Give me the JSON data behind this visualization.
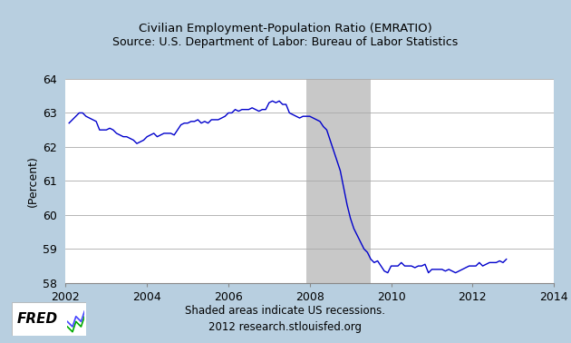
{
  "title_line1": "Civilian Employment-Population Ratio (EMRATIO)",
  "title_line2": "Source: U.S. Department of Labor: Bureau of Labor Statistics",
  "ylabel": "(Percent)",
  "xlabel_footer1": "Shaded areas indicate US recessions.",
  "xlabel_footer2": "2012 research.stlouisfed.org",
  "ylim": [
    58,
    64
  ],
  "xlim_start": 2002.0,
  "xlim_end": 2014.0,
  "yticks": [
    58,
    59,
    60,
    61,
    62,
    63,
    64
  ],
  "xticks": [
    2002,
    2004,
    2006,
    2008,
    2010,
    2012,
    2014
  ],
  "recession_start": 2007.917,
  "recession_end": 2009.5,
  "background_color": "#b8cfe0",
  "plot_bg_color": "#ffffff",
  "line_color": "#0000cc",
  "recession_color": "#c8c8c8",
  "fred_text_color": "#000000",
  "series": [
    [
      2002.083,
      62.7
    ],
    [
      2002.167,
      62.8
    ],
    [
      2002.25,
      62.9
    ],
    [
      2002.333,
      63.0
    ],
    [
      2002.417,
      63.0
    ],
    [
      2002.5,
      62.9
    ],
    [
      2002.583,
      62.85
    ],
    [
      2002.667,
      62.8
    ],
    [
      2002.75,
      62.75
    ],
    [
      2002.833,
      62.5
    ],
    [
      2002.917,
      62.5
    ],
    [
      2003.0,
      62.5
    ],
    [
      2003.083,
      62.55
    ],
    [
      2003.167,
      62.5
    ],
    [
      2003.25,
      62.4
    ],
    [
      2003.333,
      62.35
    ],
    [
      2003.417,
      62.3
    ],
    [
      2003.5,
      62.3
    ],
    [
      2003.583,
      62.25
    ],
    [
      2003.667,
      62.2
    ],
    [
      2003.75,
      62.1
    ],
    [
      2003.833,
      62.15
    ],
    [
      2003.917,
      62.2
    ],
    [
      2004.0,
      62.3
    ],
    [
      2004.083,
      62.35
    ],
    [
      2004.167,
      62.4
    ],
    [
      2004.25,
      62.3
    ],
    [
      2004.333,
      62.35
    ],
    [
      2004.417,
      62.4
    ],
    [
      2004.5,
      62.4
    ],
    [
      2004.583,
      62.4
    ],
    [
      2004.667,
      62.35
    ],
    [
      2004.75,
      62.5
    ],
    [
      2004.833,
      62.65
    ],
    [
      2004.917,
      62.7
    ],
    [
      2005.0,
      62.7
    ],
    [
      2005.083,
      62.75
    ],
    [
      2005.167,
      62.75
    ],
    [
      2005.25,
      62.8
    ],
    [
      2005.333,
      62.7
    ],
    [
      2005.417,
      62.75
    ],
    [
      2005.5,
      62.7
    ],
    [
      2005.583,
      62.8
    ],
    [
      2005.667,
      62.8
    ],
    [
      2005.75,
      62.8
    ],
    [
      2005.833,
      62.85
    ],
    [
      2005.917,
      62.9
    ],
    [
      2006.0,
      63.0
    ],
    [
      2006.083,
      63.0
    ],
    [
      2006.167,
      63.1
    ],
    [
      2006.25,
      63.05
    ],
    [
      2006.333,
      63.1
    ],
    [
      2006.417,
      63.1
    ],
    [
      2006.5,
      63.1
    ],
    [
      2006.583,
      63.15
    ],
    [
      2006.667,
      63.1
    ],
    [
      2006.75,
      63.05
    ],
    [
      2006.833,
      63.1
    ],
    [
      2006.917,
      63.1
    ],
    [
      2007.0,
      63.3
    ],
    [
      2007.083,
      63.35
    ],
    [
      2007.167,
      63.3
    ],
    [
      2007.25,
      63.35
    ],
    [
      2007.333,
      63.25
    ],
    [
      2007.417,
      63.25
    ],
    [
      2007.5,
      63.0
    ],
    [
      2007.583,
      62.95
    ],
    [
      2007.667,
      62.9
    ],
    [
      2007.75,
      62.85
    ],
    [
      2007.833,
      62.9
    ],
    [
      2007.917,
      62.9
    ],
    [
      2008.0,
      62.9
    ],
    [
      2008.083,
      62.85
    ],
    [
      2008.167,
      62.8
    ],
    [
      2008.25,
      62.75
    ],
    [
      2008.333,
      62.6
    ],
    [
      2008.417,
      62.5
    ],
    [
      2008.5,
      62.2
    ],
    [
      2008.583,
      61.9
    ],
    [
      2008.667,
      61.6
    ],
    [
      2008.75,
      61.3
    ],
    [
      2008.833,
      60.8
    ],
    [
      2008.917,
      60.3
    ],
    [
      2009.0,
      59.9
    ],
    [
      2009.083,
      59.6
    ],
    [
      2009.167,
      59.4
    ],
    [
      2009.25,
      59.2
    ],
    [
      2009.333,
      59.0
    ],
    [
      2009.417,
      58.9
    ],
    [
      2009.5,
      58.7
    ],
    [
      2009.583,
      58.6
    ],
    [
      2009.667,
      58.65
    ],
    [
      2009.75,
      58.5
    ],
    [
      2009.833,
      58.35
    ],
    [
      2009.917,
      58.3
    ],
    [
      2010.0,
      58.5
    ],
    [
      2010.083,
      58.5
    ],
    [
      2010.167,
      58.5
    ],
    [
      2010.25,
      58.6
    ],
    [
      2010.333,
      58.5
    ],
    [
      2010.417,
      58.5
    ],
    [
      2010.5,
      58.5
    ],
    [
      2010.583,
      58.45
    ],
    [
      2010.667,
      58.5
    ],
    [
      2010.75,
      58.5
    ],
    [
      2010.833,
      58.55
    ],
    [
      2010.917,
      58.3
    ],
    [
      2011.0,
      58.4
    ],
    [
      2011.083,
      58.4
    ],
    [
      2011.167,
      58.4
    ],
    [
      2011.25,
      58.4
    ],
    [
      2011.333,
      58.35
    ],
    [
      2011.417,
      58.4
    ],
    [
      2011.5,
      58.35
    ],
    [
      2011.583,
      58.3
    ],
    [
      2011.667,
      58.35
    ],
    [
      2011.75,
      58.4
    ],
    [
      2011.833,
      58.45
    ],
    [
      2011.917,
      58.5
    ],
    [
      2012.0,
      58.5
    ],
    [
      2012.083,
      58.5
    ],
    [
      2012.167,
      58.6
    ],
    [
      2012.25,
      58.5
    ],
    [
      2012.333,
      58.55
    ],
    [
      2012.417,
      58.6
    ],
    [
      2012.5,
      58.6
    ],
    [
      2012.583,
      58.6
    ],
    [
      2012.667,
      58.65
    ],
    [
      2012.75,
      58.6
    ],
    [
      2012.833,
      58.7
    ]
  ]
}
